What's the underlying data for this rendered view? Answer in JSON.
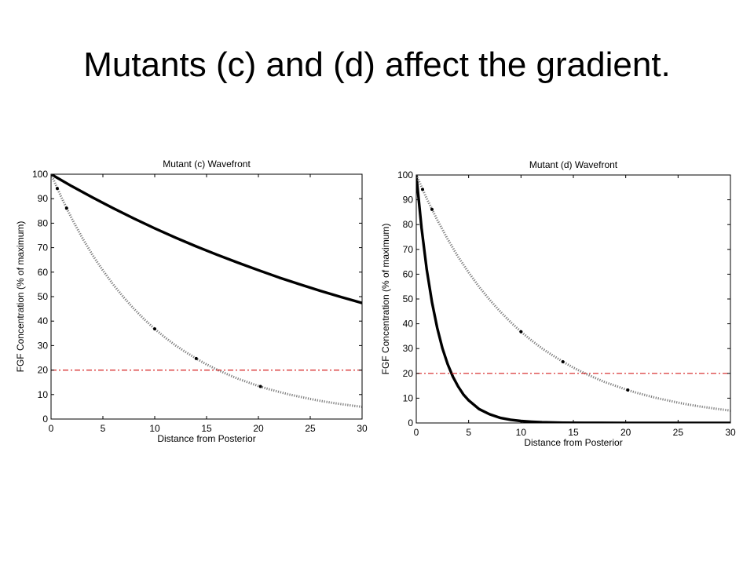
{
  "slide": {
    "title": "Mutants (c) and (d) affect the gradient."
  },
  "colors": {
    "curve": "#000000",
    "reference_curve": "#7a7a7a",
    "threshold": "#d62020"
  },
  "chart_data": [
    {
      "type": "line",
      "title": "Mutant (c) Wavefront",
      "xlabel": "Distance from Posterior",
      "ylabel": "FGF Concentration (% of maximum)",
      "xlim": [
        0,
        30
      ],
      "ylim": [
        0,
        100
      ],
      "xticks": [
        0,
        5,
        10,
        15,
        20,
        25,
        30
      ],
      "yticks": [
        0,
        10,
        20,
        30,
        40,
        50,
        60,
        70,
        80,
        90,
        100
      ],
      "grid": false,
      "series": [
        {
          "style": "solid-thick",
          "x": [
            0,
            2,
            4,
            6,
            8,
            10,
            12,
            14,
            16,
            18,
            20,
            22,
            24,
            26,
            28,
            30
          ],
          "y": [
            100,
            95.1,
            90.5,
            86.1,
            81.9,
            77.9,
            74.1,
            70.5,
            67.1,
            63.9,
            60.8,
            57.8,
            55.0,
            52.3,
            49.8,
            47.4
          ]
        },
        {
          "style": "dotted-gray",
          "x": [
            0,
            1,
            2,
            3,
            4,
            5,
            6,
            7,
            8,
            9,
            10,
            11,
            12,
            13,
            14,
            15,
            16,
            17,
            18,
            19,
            20,
            21,
            22,
            23,
            24,
            25,
            26,
            27,
            28,
            29,
            30
          ],
          "y": [
            100,
            90.5,
            81.9,
            74.1,
            67.0,
            60.7,
            54.9,
            49.7,
            45.0,
            40.7,
            36.8,
            33.3,
            30.1,
            27.3,
            24.7,
            22.3,
            20.2,
            18.3,
            16.5,
            15.0,
            13.5,
            12.2,
            11.1,
            10.0,
            9.1,
            8.2,
            7.4,
            6.7,
            6.1,
            5.5,
            5.0
          ]
        },
        {
          "style": "dash-dot-red",
          "x": [
            0,
            30
          ],
          "y": [
            20,
            20
          ]
        }
      ],
      "markers": {
        "x": [
          0.6,
          1.5,
          10,
          14,
          20.2
        ],
        "y": [
          94.2,
          86.1,
          36.8,
          24.7,
          13.3
        ]
      }
    },
    {
      "type": "line",
      "title": "Mutant (d) Wavefront",
      "xlabel": "Distance from Posterior",
      "ylabel": "FGF Concentration (% of maximum)",
      "xlim": [
        0,
        30
      ],
      "ylim": [
        0,
        100
      ],
      "xticks": [
        0,
        5,
        10,
        15,
        20,
        25,
        30
      ],
      "yticks": [
        0,
        10,
        20,
        30,
        40,
        50,
        60,
        70,
        80,
        90,
        100
      ],
      "grid": false,
      "series": [
        {
          "style": "solid-thick",
          "x": [
            0,
            0.5,
            1,
            1.5,
            2,
            2.5,
            3,
            3.5,
            4,
            4.5,
            5,
            6,
            7,
            8,
            9,
            10,
            11,
            12,
            14,
            16,
            20,
            25,
            30
          ],
          "y": [
            100,
            78.7,
            61.9,
            48.7,
            38.3,
            30.1,
            23.7,
            18.6,
            14.7,
            11.5,
            9.1,
            5.6,
            3.5,
            2.1,
            1.3,
            0.8,
            0.5,
            0.3,
            0.1,
            0.05,
            0,
            0,
            0
          ]
        },
        {
          "style": "dotted-gray",
          "x": [
            0,
            1,
            2,
            3,
            4,
            5,
            6,
            7,
            8,
            9,
            10,
            11,
            12,
            13,
            14,
            15,
            16,
            17,
            18,
            19,
            20,
            21,
            22,
            23,
            24,
            25,
            26,
            27,
            28,
            29,
            30
          ],
          "y": [
            100,
            90.5,
            81.9,
            74.1,
            67.0,
            60.7,
            54.9,
            49.7,
            45.0,
            40.7,
            36.8,
            33.3,
            30.1,
            27.3,
            24.7,
            22.3,
            20.2,
            18.3,
            16.5,
            15.0,
            13.5,
            12.2,
            11.1,
            10.0,
            9.1,
            8.2,
            7.4,
            6.7,
            6.1,
            5.5,
            5.0
          ]
        },
        {
          "style": "dash-dot-red",
          "x": [
            0,
            30
          ],
          "y": [
            20,
            20
          ]
        }
      ],
      "markers": {
        "x": [
          0.6,
          1.5,
          10,
          14,
          20.2
        ],
        "y": [
          94.2,
          86.1,
          36.8,
          24.7,
          13.3
        ]
      }
    }
  ]
}
